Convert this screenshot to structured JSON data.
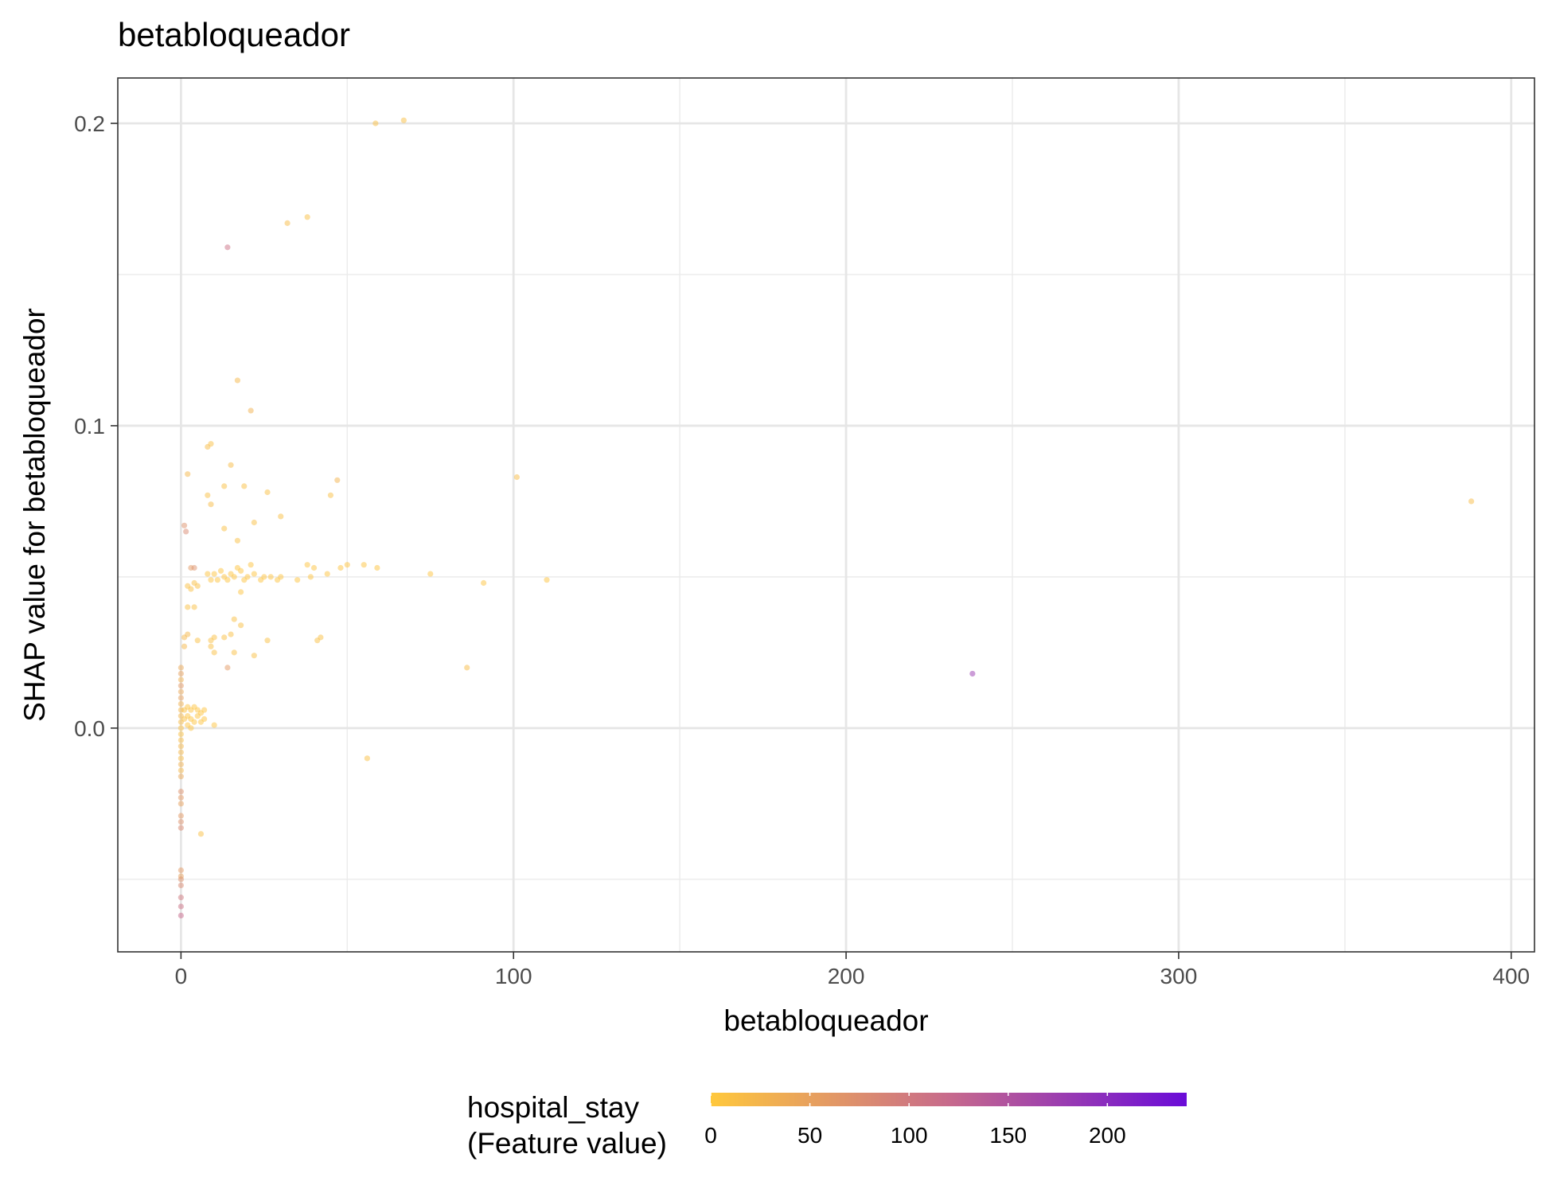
{
  "chart_data": {
    "type": "scatter",
    "title": "betabloqueador",
    "xlabel": "betabloqueador",
    "ylabel": "SHAP value for betabloqueador",
    "xlim": [
      -19,
      407
    ],
    "ylim": [
      -0.074,
      0.215
    ],
    "x_ticks": [
      0,
      100,
      200,
      300,
      400
    ],
    "x_tick_labels": [
      "0",
      "100",
      "200",
      "300",
      "400"
    ],
    "y_ticks": [
      0.0,
      0.1,
      0.2
    ],
    "y_tick_labels": [
      "0.0",
      "0.1",
      "0.2"
    ],
    "grid": true,
    "legend": {
      "title_line1": "hospital_stay",
      "title_line2": "(Feature value)",
      "placement": "bottom",
      "range": [
        0,
        240
      ],
      "ticks": [
        0,
        50,
        100,
        150,
        200
      ],
      "tick_labels": [
        "0",
        "50",
        "100",
        "150",
        "200"
      ],
      "color_low": "#FFC83C",
      "color_mid": "#C76A8C",
      "color_high": "#6A0BD8"
    },
    "series": [
      {
        "points": [
          {
            "x": 58.5,
            "y": 0.2,
            "c": 10
          },
          {
            "x": 67,
            "y": 0.201,
            "c": 10
          },
          {
            "x": 32,
            "y": 0.167,
            "c": 15
          },
          {
            "x": 38,
            "y": 0.169,
            "c": 12
          },
          {
            "x": 14,
            "y": 0.159,
            "c": 110
          },
          {
            "x": 17,
            "y": 0.115,
            "c": 20
          },
          {
            "x": 21,
            "y": 0.105,
            "c": 30
          },
          {
            "x": 8,
            "y": 0.093,
            "c": 15
          },
          {
            "x": 9,
            "y": 0.094,
            "c": 10
          },
          {
            "x": 15,
            "y": 0.087,
            "c": 15
          },
          {
            "x": 2,
            "y": 0.084,
            "c": 20
          },
          {
            "x": 101,
            "y": 0.083,
            "c": 15
          },
          {
            "x": 47,
            "y": 0.082,
            "c": 25
          },
          {
            "x": 13,
            "y": 0.08,
            "c": 10
          },
          {
            "x": 19,
            "y": 0.08,
            "c": 10
          },
          {
            "x": 26,
            "y": 0.078,
            "c": 10
          },
          {
            "x": 8,
            "y": 0.077,
            "c": 10
          },
          {
            "x": 45,
            "y": 0.077,
            "c": 10
          },
          {
            "x": 9,
            "y": 0.074,
            "c": 15
          },
          {
            "x": 388,
            "y": 0.075,
            "c": 15
          },
          {
            "x": 30,
            "y": 0.07,
            "c": 10
          },
          {
            "x": 22,
            "y": 0.068,
            "c": 10
          },
          {
            "x": 1,
            "y": 0.067,
            "c": 70
          },
          {
            "x": 1.5,
            "y": 0.065,
            "c": 80
          },
          {
            "x": 13,
            "y": 0.066,
            "c": 10
          },
          {
            "x": 17,
            "y": 0.062,
            "c": 10
          },
          {
            "x": 3,
            "y": 0.053,
            "c": 60
          },
          {
            "x": 4,
            "y": 0.053,
            "c": 70
          },
          {
            "x": 55,
            "y": 0.054,
            "c": 5
          },
          {
            "x": 59,
            "y": 0.053,
            "c": 5
          },
          {
            "x": 50,
            "y": 0.054,
            "c": 5
          },
          {
            "x": 48,
            "y": 0.053,
            "c": 5
          },
          {
            "x": 38,
            "y": 0.054,
            "c": 5
          },
          {
            "x": 40,
            "y": 0.053,
            "c": 5
          },
          {
            "x": 21,
            "y": 0.054,
            "c": 5
          },
          {
            "x": 17,
            "y": 0.053,
            "c": 5
          },
          {
            "x": 8,
            "y": 0.051,
            "c": 5
          },
          {
            "x": 9,
            "y": 0.049,
            "c": 5
          },
          {
            "x": 10,
            "y": 0.051,
            "c": 5
          },
          {
            "x": 11,
            "y": 0.049,
            "c": 5
          },
          {
            "x": 12,
            "y": 0.052,
            "c": 5
          },
          {
            "x": 13,
            "y": 0.05,
            "c": 5
          },
          {
            "x": 14,
            "y": 0.049,
            "c": 5
          },
          {
            "x": 15,
            "y": 0.051,
            "c": 5
          },
          {
            "x": 16,
            "y": 0.05,
            "c": 5
          },
          {
            "x": 18,
            "y": 0.052,
            "c": 5
          },
          {
            "x": 19,
            "y": 0.049,
            "c": 5
          },
          {
            "x": 20,
            "y": 0.05,
            "c": 5
          },
          {
            "x": 22,
            "y": 0.051,
            "c": 5
          },
          {
            "x": 24,
            "y": 0.049,
            "c": 5
          },
          {
            "x": 25,
            "y": 0.05,
            "c": 5
          },
          {
            "x": 27,
            "y": 0.05,
            "c": 5
          },
          {
            "x": 29,
            "y": 0.049,
            "c": 5
          },
          {
            "x": 30,
            "y": 0.05,
            "c": 5
          },
          {
            "x": 35,
            "y": 0.049,
            "c": 5
          },
          {
            "x": 39,
            "y": 0.05,
            "c": 5
          },
          {
            "x": 44,
            "y": 0.051,
            "c": 5
          },
          {
            "x": 75,
            "y": 0.051,
            "c": 5
          },
          {
            "x": 91,
            "y": 0.048,
            "c": 5
          },
          {
            "x": 110,
            "y": 0.049,
            "c": 5
          },
          {
            "x": 18,
            "y": 0.045,
            "c": 5
          },
          {
            "x": 2,
            "y": 0.047,
            "c": 10
          },
          {
            "x": 3,
            "y": 0.046,
            "c": 10
          },
          {
            "x": 4,
            "y": 0.048,
            "c": 10
          },
          {
            "x": 5,
            "y": 0.047,
            "c": 10
          },
          {
            "x": 2,
            "y": 0.04,
            "c": 10
          },
          {
            "x": 4,
            "y": 0.04,
            "c": 10
          },
          {
            "x": 16,
            "y": 0.036,
            "c": 10
          },
          {
            "x": 18,
            "y": 0.034,
            "c": 10
          },
          {
            "x": 42,
            "y": 0.03,
            "c": 10
          },
          {
            "x": 41,
            "y": 0.029,
            "c": 10
          },
          {
            "x": 26,
            "y": 0.029,
            "c": 10
          },
          {
            "x": 13,
            "y": 0.03,
            "c": 10
          },
          {
            "x": 15,
            "y": 0.031,
            "c": 10
          },
          {
            "x": 9,
            "y": 0.029,
            "c": 10
          },
          {
            "x": 10,
            "y": 0.03,
            "c": 10
          },
          {
            "x": 1,
            "y": 0.03,
            "c": 20
          },
          {
            "x": 2,
            "y": 0.031,
            "c": 20
          },
          {
            "x": 1,
            "y": 0.027,
            "c": 20
          },
          {
            "x": 5,
            "y": 0.029,
            "c": 10
          },
          {
            "x": 9,
            "y": 0.027,
            "c": 10
          },
          {
            "x": 10,
            "y": 0.025,
            "c": 10
          },
          {
            "x": 16,
            "y": 0.025,
            "c": 10
          },
          {
            "x": 22,
            "y": 0.024,
            "c": 10
          },
          {
            "x": 14,
            "y": 0.02,
            "c": 60
          },
          {
            "x": 86,
            "y": 0.02,
            "c": 15
          },
          {
            "x": 238,
            "y": 0.018,
            "c": 180
          },
          {
            "x": 0,
            "y": 0.02,
            "c": 40
          },
          {
            "x": 0,
            "y": 0.018,
            "c": 50
          },
          {
            "x": 0,
            "y": 0.016,
            "c": 30
          },
          {
            "x": 0,
            "y": 0.014,
            "c": 60
          },
          {
            "x": 0,
            "y": 0.012,
            "c": 40
          },
          {
            "x": 0,
            "y": 0.01,
            "c": 50
          },
          {
            "x": 0,
            "y": 0.008,
            "c": 30
          },
          {
            "x": 0,
            "y": 0.006,
            "c": 20
          },
          {
            "x": 0,
            "y": 0.004,
            "c": 20
          },
          {
            "x": 0,
            "y": 0.002,
            "c": 15
          },
          {
            "x": 0,
            "y": 0.0,
            "c": 10
          },
          {
            "x": 0,
            "y": -0.002,
            "c": 10
          },
          {
            "x": 0,
            "y": -0.004,
            "c": 15
          },
          {
            "x": 0,
            "y": -0.006,
            "c": 20
          },
          {
            "x": 0,
            "y": -0.008,
            "c": 20
          },
          {
            "x": 0,
            "y": -0.01,
            "c": 15
          },
          {
            "x": 0,
            "y": -0.012,
            "c": 30
          },
          {
            "x": 0,
            "y": -0.014,
            "c": 20
          },
          {
            "x": 0,
            "y": -0.016,
            "c": 40
          },
          {
            "x": 0,
            "y": -0.021,
            "c": 70
          },
          {
            "x": 0,
            "y": -0.023,
            "c": 60
          },
          {
            "x": 0,
            "y": -0.025,
            "c": 50
          },
          {
            "x": 0,
            "y": -0.029,
            "c": 60
          },
          {
            "x": 0,
            "y": -0.031,
            "c": 70
          },
          {
            "x": 0,
            "y": -0.033,
            "c": 80
          },
          {
            "x": 0,
            "y": -0.047,
            "c": 60
          },
          {
            "x": 0,
            "y": -0.049,
            "c": 50
          },
          {
            "x": 0,
            "y": -0.05,
            "c": 70
          },
          {
            "x": 0,
            "y": -0.052,
            "c": 80
          },
          {
            "x": 0,
            "y": -0.056,
            "c": 100
          },
          {
            "x": 0,
            "y": -0.059,
            "c": 110
          },
          {
            "x": 0,
            "y": -0.062,
            "c": 120
          },
          {
            "x": 1,
            "y": 0.006,
            "c": 10
          },
          {
            "x": 1,
            "y": 0.003,
            "c": 10
          },
          {
            "x": 2,
            "y": 0.007,
            "c": 5
          },
          {
            "x": 2,
            "y": 0.004,
            "c": 5
          },
          {
            "x": 2,
            "y": 0.001,
            "c": 5
          },
          {
            "x": 3,
            "y": 0.006,
            "c": 5
          },
          {
            "x": 3,
            "y": 0.003,
            "c": 5
          },
          {
            "x": 4,
            "y": 0.007,
            "c": 5
          },
          {
            "x": 4,
            "y": 0.002,
            "c": 5
          },
          {
            "x": 5,
            "y": 0.006,
            "c": 5
          },
          {
            "x": 5,
            "y": 0.004,
            "c": 5
          },
          {
            "x": 6,
            "y": 0.005,
            "c": 5
          },
          {
            "x": 6,
            "y": 0.002,
            "c": 5
          },
          {
            "x": 7,
            "y": 0.006,
            "c": 5
          },
          {
            "x": 7,
            "y": 0.003,
            "c": 5
          },
          {
            "x": 3,
            "y": 0.0,
            "c": 5
          },
          {
            "x": 10,
            "y": 0.001,
            "c": 5
          },
          {
            "x": 56,
            "y": -0.01,
            "c": 10
          },
          {
            "x": 6,
            "y": -0.035,
            "c": 10
          }
        ]
      }
    ]
  }
}
